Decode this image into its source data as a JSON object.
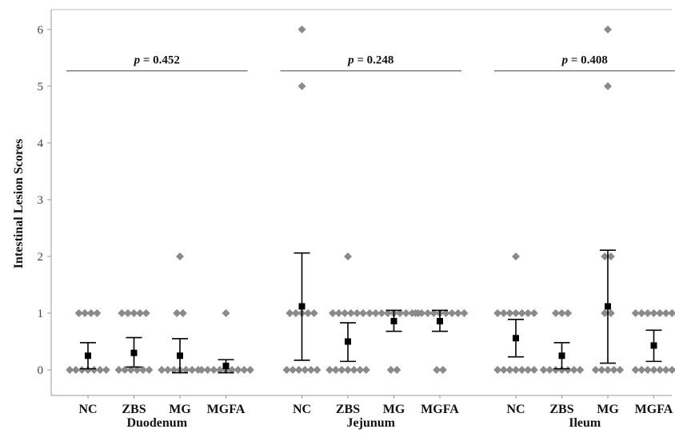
{
  "chart_data": {
    "type": "scatter",
    "ylabel": "Intestinal Lesion Scores",
    "xlabel": "",
    "ylim": [
      -0.45,
      6.35
    ],
    "yticks": [
      0,
      1,
      2,
      3,
      4,
      5,
      6
    ],
    "grid": false,
    "colors": {
      "point": "#8a8a8a",
      "mean": "#000000",
      "errorbar": "#000000",
      "pline": "#444444"
    },
    "groups": [
      {
        "name": "Duodenum",
        "p_label": "p",
        "p_value": "= 0.452",
        "categories": [
          {
            "label": "NC",
            "points": [
              [
                0,
                7
              ],
              [
                1,
                4
              ]
            ],
            "mean": 0.25,
            "ci": [
              0.02,
              0.48
            ]
          },
          {
            "label": "ZBS",
            "points": [
              [
                0,
                6
              ],
              [
                1,
                5
              ]
            ],
            "mean": 0.3,
            "ci": [
              0.05,
              0.57
            ]
          },
          {
            "label": "MG",
            "points": [
              [
                0,
                7
              ],
              [
                1,
                2
              ],
              [
                2,
                1
              ]
            ],
            "mean": 0.25,
            "ci": [
              -0.05,
              0.55
            ]
          },
          {
            "label": "MGFA",
            "points": [
              [
                0,
                9
              ],
              [
                1,
                1
              ]
            ],
            "mean": 0.07,
            "ci": [
              -0.05,
              0.18
            ]
          }
        ]
      },
      {
        "name": "Jejunum",
        "p_label": "p",
        "p_value": "= 0.248",
        "categories": [
          {
            "label": "NC",
            "points": [
              [
                0,
                6
              ],
              [
                1,
                5
              ],
              [
                5,
                1
              ],
              [
                6,
                1
              ]
            ],
            "mean": 1.12,
            "ci": [
              0.17,
              2.06
            ]
          },
          {
            "label": "ZBS",
            "points": [
              [
                0,
                7
              ],
              [
                1,
                6
              ],
              [
                2,
                1
              ]
            ],
            "mean": 0.5,
            "ci": [
              0.15,
              0.83
            ]
          },
          {
            "label": "MG",
            "points": [
              [
                0,
                2
              ],
              [
                1,
                9
              ]
            ],
            "mean": 0.86,
            "ci": [
              0.68,
              1.05
            ]
          },
          {
            "label": "MGFA",
            "points": [
              [
                0,
                2
              ],
              [
                1,
                9
              ]
            ],
            "mean": 0.86,
            "ci": [
              0.68,
              1.05
            ]
          }
        ]
      },
      {
        "name": "Ileum",
        "p_label": "p",
        "p_value": "= 0.408",
        "categories": [
          {
            "label": "NC",
            "points": [
              [
                0,
                7
              ],
              [
                1,
                7
              ],
              [
                2,
                1
              ]
            ],
            "mean": 0.56,
            "ci": [
              0.23,
              0.89
            ]
          },
          {
            "label": "ZBS",
            "points": [
              [
                0,
                7
              ],
              [
                1,
                3
              ]
            ],
            "mean": 0.25,
            "ci": [
              0.02,
              0.48
            ]
          },
          {
            "label": "MG",
            "points": [
              [
                0,
                5
              ],
              [
                1,
                2
              ],
              [
                2,
                2
              ],
              [
                5,
                1
              ],
              [
                6,
                1
              ]
            ],
            "mean": 1.12,
            "ci": [
              0.12,
              2.11
            ]
          },
          {
            "label": "MGFA",
            "points": [
              [
                0,
                7
              ],
              [
                1,
                7
              ]
            ],
            "mean": 0.43,
            "ci": [
              0.15,
              0.7
            ]
          }
        ]
      }
    ]
  }
}
